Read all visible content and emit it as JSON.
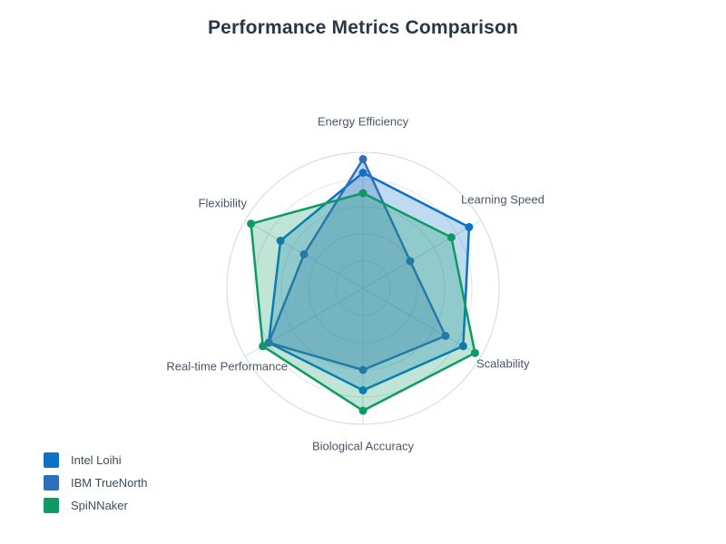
{
  "title": "Performance Metrics Comparison",
  "colors": {
    "background": "#ffffff",
    "title_text": "#2a3747",
    "axis_label_text": "#4a5568",
    "legend_text": "#3d4c5c",
    "grid_ring": "#dfe4f0",
    "grid_outer_ring": "#cdd6e8",
    "grid_spoke": "#d3dae8",
    "intel_loihi_blue": "#0b72c6",
    "ibm_truenorth_blue": "#2e6fba",
    "spinnaker_green": "#0d9a63"
  },
  "chart_data": {
    "type": "radar",
    "title": "Performance Metrics Comparison",
    "categories": [
      "Energy Efficiency",
      "Learning Speed",
      "Scalability",
      "Biological Accuracy",
      "Real-time Performance",
      "Flexibility"
    ],
    "series": [
      {
        "name": "Intel Loihi",
        "color": "#0b72c6",
        "values": [
          8.5,
          9,
          8.5,
          7.5,
          8,
          7
        ]
      },
      {
        "name": "IBM TrueNorth",
        "color": "#2e6fba",
        "values": [
          9.5,
          4,
          7,
          6,
          8,
          5
        ]
      },
      {
        "name": "SpiNNaker",
        "color": "#0d9a63",
        "values": [
          7,
          7.5,
          9.5,
          9,
          8.5,
          9.5
        ]
      }
    ],
    "rmin": 0,
    "rmax": 10,
    "ring_values": [
      2,
      4,
      6,
      8,
      10
    ],
    "radial_tick_labels_visible": false,
    "start_axis": "top",
    "direction": "clockwise",
    "grid_shape": "circle",
    "fill_opacity": 0.26,
    "legend_position": "bottom-left"
  }
}
